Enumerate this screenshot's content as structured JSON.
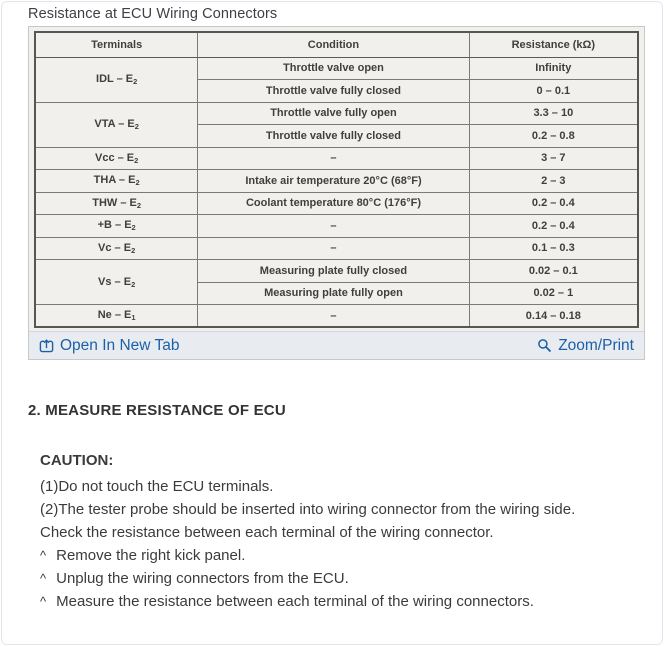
{
  "page": {
    "title": "Resistance at ECU Wiring Connectors"
  },
  "colors": {
    "accent_blue": "#1b60a8",
    "scan_background": "#f1f0ed",
    "links_bar_background": "#e8ecf0"
  },
  "table": {
    "headers": [
      "Terminals",
      "Condition",
      "Resistance (kΩ)"
    ],
    "rows": [
      {
        "terminal": {
          "text": "IDL – E",
          "sub": "2",
          "rowspan": 2
        },
        "condition": "Throttle valve open",
        "resistance": "Infinity"
      },
      {
        "condition": "Throttle valve fully closed",
        "resistance": "0 – 0.1"
      },
      {
        "terminal": {
          "text": "VTA – E",
          "sub": "2",
          "rowspan": 2
        },
        "condition": "Throttle valve fully open",
        "resistance": "3.3 – 10"
      },
      {
        "condition": "Throttle valve fully closed",
        "resistance": "0.2 – 0.8"
      },
      {
        "terminal": {
          "text": "Vcc – E",
          "sub": "2",
          "rowspan": 1
        },
        "condition": "–",
        "resistance": "3 – 7"
      },
      {
        "terminal": {
          "text": "THA – E",
          "sub": "2",
          "rowspan": 1
        },
        "condition": "Intake air temperature 20°C (68°F)",
        "resistance": "2 – 3"
      },
      {
        "terminal": {
          "text": "THW – E",
          "sub": "2",
          "rowspan": 1
        },
        "condition": "Coolant temperature 80°C (176°F)",
        "resistance": "0.2 – 0.4"
      },
      {
        "terminal": {
          "text": "+B – E",
          "sub": "2",
          "rowspan": 1
        },
        "condition": "–",
        "resistance": "0.2 – 0.4"
      },
      {
        "terminal": {
          "text": "Vc – E",
          "sub": "2",
          "rowspan": 1
        },
        "condition": "–",
        "resistance": "0.1 – 0.3"
      },
      {
        "terminal": {
          "text": "Vs – E",
          "sub": "2",
          "rowspan": 2
        },
        "condition": "Measuring plate fully closed",
        "resistance": "0.02 – 0.1"
      },
      {
        "condition": "Measuring plate fully open",
        "resistance": "0.02 – 1"
      },
      {
        "terminal": {
          "text": "Ne – E",
          "sub": "1",
          "rowspan": 1
        },
        "condition": "–",
        "resistance": "0.14 – 0.18"
      }
    ]
  },
  "links": {
    "open_in_new_tab": "Open In New Tab",
    "zoom_print": "Zoom/Print"
  },
  "section": {
    "heading": "2. MEASURE RESISTANCE OF ECU",
    "caution_label": "CAUTION:",
    "lines": [
      "(1)Do not touch the ECU terminals.",
      "(2)The tester probe should be inserted into wiring connector from the wiring side.",
      "Check the resistance between each terminal of the wiring connector."
    ],
    "bullet_char": "^",
    "bullets": [
      "Remove the right kick panel.",
      "Unplug the wiring connectors from the ECU.",
      "Measure the resistance between each terminal of the wiring connectors."
    ]
  }
}
